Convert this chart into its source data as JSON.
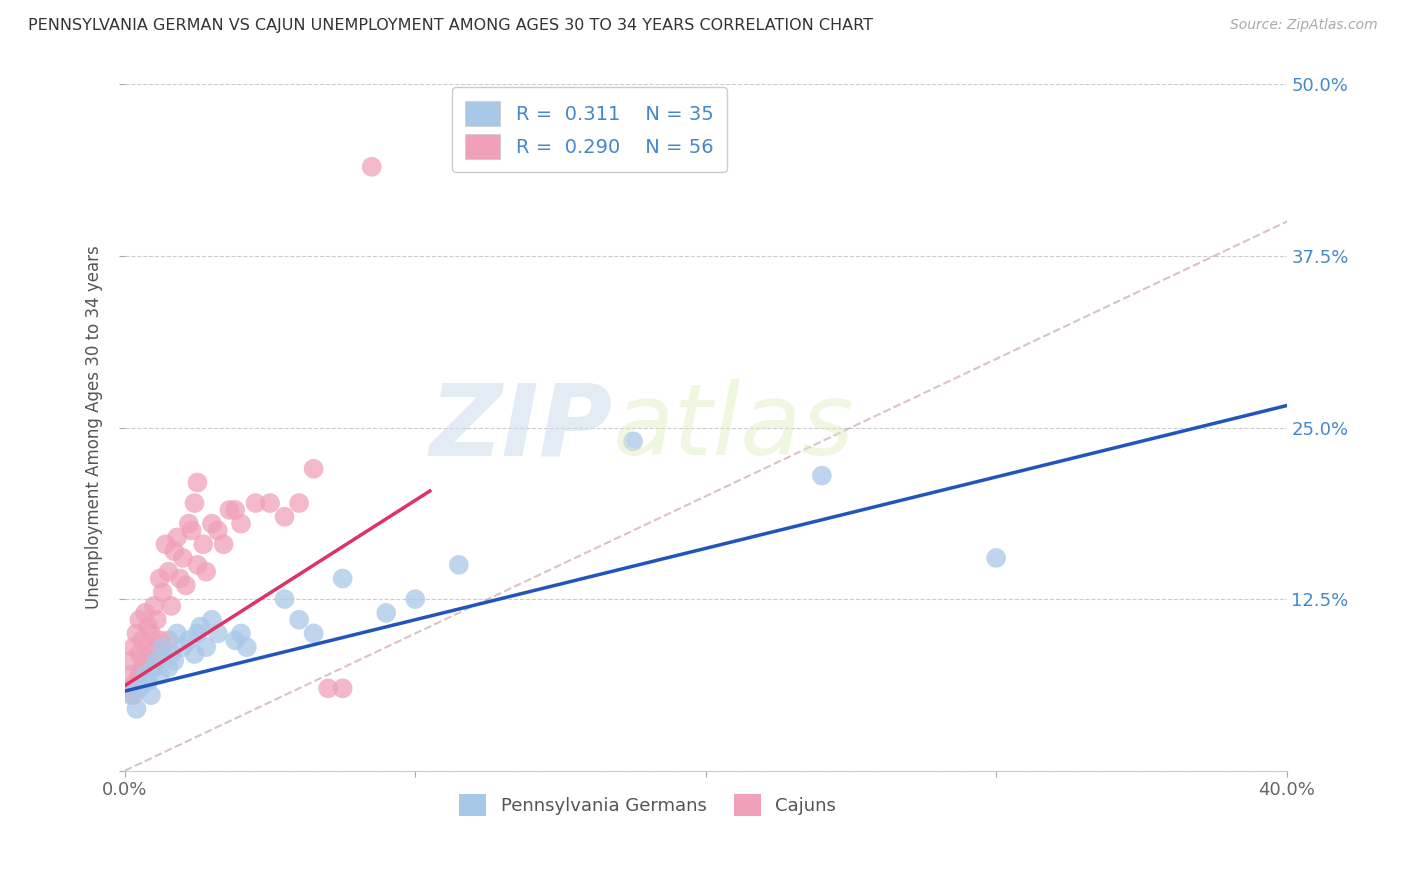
{
  "title": "PENNSYLVANIA GERMAN VS CAJUN UNEMPLOYMENT AMONG AGES 30 TO 34 YEARS CORRELATION CHART",
  "source": "Source: ZipAtlas.com",
  "ylabel": "Unemployment Among Ages 30 to 34 years",
  "xlim": [
    0.0,
    0.4
  ],
  "ylim": [
    0.0,
    0.5
  ],
  "xticks": [
    0.0,
    0.1,
    0.2,
    0.3,
    0.4
  ],
  "xtick_labels": [
    "0.0%",
    "",
    "",
    "",
    "40.0%"
  ],
  "yticks": [
    0.0,
    0.125,
    0.25,
    0.375,
    0.5
  ],
  "ytick_labels_right": [
    "",
    "12.5%",
    "25.0%",
    "37.5%",
    "50.0%"
  ],
  "legend_r1": "R =  0.311",
  "legend_n1": "N = 35",
  "legend_r2": "R =  0.290",
  "legend_n2": "N = 56",
  "color_blue": "#A8C8E8",
  "color_pink": "#F0A0B8",
  "color_blue_line": "#2255BB",
  "color_pink_line": "#DD3366",
  "color_text_blue": "#4488CC",
  "color_yaxis": "#4488CC",
  "watermark_zip": "ZIP",
  "watermark_atlas": "atlas",
  "blue_scatter_x": [
    0.002,
    0.004,
    0.005,
    0.007,
    0.008,
    0.009,
    0.01,
    0.011,
    0.012,
    0.013,
    0.015,
    0.016,
    0.017,
    0.018,
    0.02,
    0.022,
    0.024,
    0.025,
    0.026,
    0.028,
    0.03,
    0.032,
    0.038,
    0.04,
    0.042,
    0.055,
    0.06,
    0.065,
    0.075,
    0.09,
    0.1,
    0.115,
    0.175,
    0.24,
    0.3
  ],
  "blue_scatter_y": [
    0.055,
    0.045,
    0.06,
    0.07,
    0.065,
    0.055,
    0.075,
    0.08,
    0.07,
    0.09,
    0.075,
    0.085,
    0.08,
    0.1,
    0.09,
    0.095,
    0.085,
    0.1,
    0.105,
    0.09,
    0.11,
    0.1,
    0.095,
    0.1,
    0.09,
    0.125,
    0.11,
    0.1,
    0.14,
    0.115,
    0.125,
    0.15,
    0.24,
    0.215,
    0.155
  ],
  "pink_scatter_x": [
    0.001,
    0.002,
    0.002,
    0.003,
    0.003,
    0.004,
    0.004,
    0.005,
    0.005,
    0.005,
    0.006,
    0.006,
    0.007,
    0.007,
    0.008,
    0.008,
    0.009,
    0.009,
    0.01,
    0.01,
    0.011,
    0.011,
    0.012,
    0.012,
    0.013,
    0.013,
    0.014,
    0.015,
    0.015,
    0.016,
    0.017,
    0.018,
    0.019,
    0.02,
    0.021,
    0.022,
    0.023,
    0.024,
    0.025,
    0.025,
    0.027,
    0.028,
    0.03,
    0.032,
    0.034,
    0.036,
    0.038,
    0.04,
    0.045,
    0.05,
    0.055,
    0.06,
    0.065,
    0.07,
    0.075,
    0.085
  ],
  "pink_scatter_y": [
    0.06,
    0.07,
    0.08,
    0.055,
    0.09,
    0.065,
    0.1,
    0.07,
    0.085,
    0.11,
    0.075,
    0.095,
    0.08,
    0.115,
    0.09,
    0.105,
    0.08,
    0.1,
    0.075,
    0.12,
    0.09,
    0.11,
    0.095,
    0.14,
    0.085,
    0.13,
    0.165,
    0.095,
    0.145,
    0.12,
    0.16,
    0.17,
    0.14,
    0.155,
    0.135,
    0.18,
    0.175,
    0.195,
    0.15,
    0.21,
    0.165,
    0.145,
    0.18,
    0.175,
    0.165,
    0.19,
    0.19,
    0.18,
    0.195,
    0.195,
    0.185,
    0.195,
    0.22,
    0.06,
    0.06,
    0.44
  ],
  "blue_trend_x": [
    0.0,
    0.4
  ],
  "blue_trend_slope": 0.52,
  "blue_trend_intercept": 0.058,
  "pink_trend_x": [
    0.0,
    0.105
  ],
  "pink_trend_slope": 1.35,
  "pink_trend_intercept": 0.062,
  "ref_line_x": [
    0.0,
    0.5
  ],
  "ref_line_y": [
    0.0,
    0.5
  ]
}
